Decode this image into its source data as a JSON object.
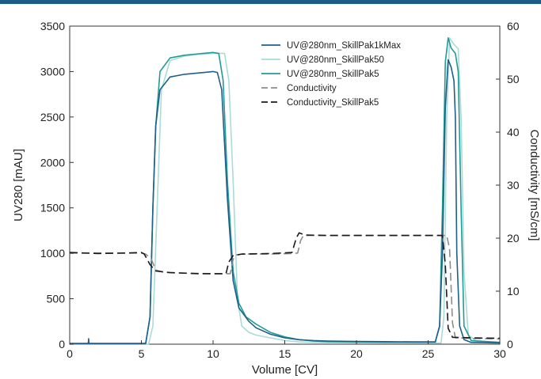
{
  "chart_data": {
    "type": "line",
    "xlabel": "Volume [CV]",
    "ylabel": "UV280 [mAU]",
    "y2label": "Conductivity [mS/cm]",
    "xlim": [
      0,
      30
    ],
    "ylim": [
      0,
      3500
    ],
    "y2lim": [
      0,
      60
    ],
    "x_ticks": [
      "0",
      "5",
      "10",
      "15",
      "20",
      "25",
      "30"
    ],
    "y_ticks": [
      "0",
      "500",
      "1000",
      "1500",
      "2000",
      "2500",
      "3000",
      "3500"
    ],
    "y2_ticks": [
      "0",
      "10",
      "20",
      "30",
      "40",
      "50",
      "60"
    ],
    "grid": false,
    "legend_position": "top-right",
    "series": [
      {
        "name": "UV@280nm_SkillPak1kMax",
        "axis": "left",
        "color": "#1f5f8b",
        "dash": "solid",
        "points": [
          [
            0,
            5
          ],
          [
            1.3,
            5
          ],
          [
            1.32,
            60
          ],
          [
            1.34,
            5
          ],
          [
            5.3,
            5
          ],
          [
            5.6,
            300
          ],
          [
            5.8,
            1500
          ],
          [
            6.0,
            2400
          ],
          [
            6.3,
            2800
          ],
          [
            7.0,
            2940
          ],
          [
            8,
            2970
          ],
          [
            9,
            2985
          ],
          [
            10,
            3000
          ],
          [
            10.3,
            2990
          ],
          [
            10.6,
            2800
          ],
          [
            11.0,
            1600
          ],
          [
            11.4,
            700
          ],
          [
            11.8,
            400
          ],
          [
            12.5,
            250
          ],
          [
            13,
            180
          ],
          [
            14,
            110
          ],
          [
            15,
            70
          ],
          [
            16,
            50
          ],
          [
            17,
            40
          ],
          [
            18,
            35
          ],
          [
            20,
            30
          ],
          [
            22,
            28
          ],
          [
            24,
            25
          ],
          [
            25.5,
            25
          ],
          [
            25.8,
            200
          ],
          [
            26.0,
            1000
          ],
          [
            26.2,
            2600
          ],
          [
            26.4,
            3130
          ],
          [
            26.6,
            3050
          ],
          [
            26.8,
            2900
          ],
          [
            26.9,
            2500
          ],
          [
            27.0,
            1000
          ],
          [
            27.2,
            200
          ],
          [
            27.5,
            50
          ],
          [
            28,
            20
          ],
          [
            30,
            15
          ]
        ]
      },
      {
        "name": "UV@280nm_SkillPak50",
        "axis": "left",
        "color": "#a9dcd6",
        "dash": "solid",
        "points": [
          [
            0,
            0
          ],
          [
            5.5,
            0
          ],
          [
            5.8,
            200
          ],
          [
            6.1,
            1500
          ],
          [
            6.4,
            2800
          ],
          [
            7.0,
            3120
          ],
          [
            8,
            3170
          ],
          [
            9,
            3190
          ],
          [
            10,
            3200
          ],
          [
            10.8,
            3200
          ],
          [
            11.1,
            2900
          ],
          [
            11.4,
            1800
          ],
          [
            11.7,
            500
          ],
          [
            12.0,
            200
          ],
          [
            12.5,
            130
          ],
          [
            13,
            100
          ],
          [
            14,
            70
          ],
          [
            15,
            40
          ],
          [
            16,
            25
          ],
          [
            17,
            20
          ],
          [
            20,
            15
          ],
          [
            25,
            12
          ],
          [
            25.9,
            12
          ],
          [
            26.1,
            300
          ],
          [
            26.3,
            2500
          ],
          [
            26.5,
            3370
          ],
          [
            26.8,
            3300
          ],
          [
            27.1,
            3250
          ],
          [
            27.3,
            2500
          ],
          [
            27.5,
            800
          ],
          [
            27.8,
            100
          ],
          [
            28.5,
            20
          ],
          [
            30,
            10
          ]
        ]
      },
      {
        "name": "UV@280nm_SkillPak5",
        "axis": "left",
        "color": "#229a96",
        "dash": "solid",
        "points": [
          [
            0,
            10
          ],
          [
            5.3,
            10
          ],
          [
            5.6,
            300
          ],
          [
            5.8,
            1500
          ],
          [
            6.0,
            2400
          ],
          [
            6.3,
            3000
          ],
          [
            7.0,
            3150
          ],
          [
            8,
            3180
          ],
          [
            9,
            3195
          ],
          [
            10,
            3210
          ],
          [
            10.4,
            3200
          ],
          [
            10.7,
            2900
          ],
          [
            11.0,
            1800
          ],
          [
            11.4,
            800
          ],
          [
            11.8,
            450
          ],
          [
            12.3,
            300
          ],
          [
            13,
            220
          ],
          [
            14,
            130
          ],
          [
            15,
            80
          ],
          [
            16,
            50
          ],
          [
            17,
            35
          ],
          [
            18,
            28
          ],
          [
            20,
            25
          ],
          [
            22,
            22
          ],
          [
            24,
            22
          ],
          [
            25.5,
            22
          ],
          [
            25.8,
            200
          ],
          [
            26.0,
            1500
          ],
          [
            26.2,
            3100
          ],
          [
            26.4,
            3370
          ],
          [
            26.6,
            3260
          ],
          [
            26.9,
            3200
          ],
          [
            27.1,
            3000
          ],
          [
            27.3,
            1500
          ],
          [
            27.5,
            200
          ],
          [
            28,
            40
          ],
          [
            30,
            20
          ]
        ]
      },
      {
        "name": "Conductivity",
        "axis": "right",
        "color": "#8c8c8c",
        "dash": "10,5",
        "points": [
          [
            0,
            17.2
          ],
          [
            5,
            17.2
          ],
          [
            5.3,
            17.0
          ],
          [
            5.7,
            16.0
          ],
          [
            6.0,
            14.0
          ],
          [
            6.5,
            13.6
          ],
          [
            8,
            13.4
          ],
          [
            10,
            13.3
          ],
          [
            11.2,
            13.3
          ],
          [
            11.4,
            16.0
          ],
          [
            11.6,
            16.8
          ],
          [
            12,
            17.0
          ],
          [
            14,
            17.0
          ],
          [
            15.5,
            17.1
          ],
          [
            15.9,
            17.2
          ],
          [
            16.1,
            19.5
          ],
          [
            16.3,
            20.5
          ],
          [
            18,
            20.5
          ],
          [
            20,
            20.5
          ],
          [
            24,
            20.5
          ],
          [
            26.3,
            20.5
          ],
          [
            26.5,
            18
          ],
          [
            26.7,
            4
          ],
          [
            26.9,
            1.2
          ],
          [
            28,
            1.1
          ],
          [
            30,
            1.0
          ]
        ]
      },
      {
        "name": "Conductivity_SkillPak5",
        "axis": "right",
        "color": "#1a1a1a",
        "dash": "10,5",
        "points": [
          [
            0,
            17.3
          ],
          [
            2,
            17.1
          ],
          [
            4,
            17.2
          ],
          [
            5.0,
            17.3
          ],
          [
            5.2,
            17.0
          ],
          [
            5.6,
            15.0
          ],
          [
            6.0,
            13.8
          ],
          [
            7,
            13.5
          ],
          [
            9,
            13.3
          ],
          [
            10.9,
            13.3
          ],
          [
            11.1,
            15.5
          ],
          [
            11.4,
            16.7
          ],
          [
            12,
            17.0
          ],
          [
            14,
            17.1
          ],
          [
            15.5,
            17.3
          ],
          [
            15.8,
            20.0
          ],
          [
            16.0,
            21.0
          ],
          [
            16.4,
            20.6
          ],
          [
            18,
            20.5
          ],
          [
            22,
            20.5
          ],
          [
            26.0,
            20.5
          ],
          [
            26.2,
            15
          ],
          [
            26.4,
            3
          ],
          [
            26.7,
            1.3
          ],
          [
            28,
            1.2
          ],
          [
            30,
            1.1
          ]
        ]
      }
    ]
  }
}
